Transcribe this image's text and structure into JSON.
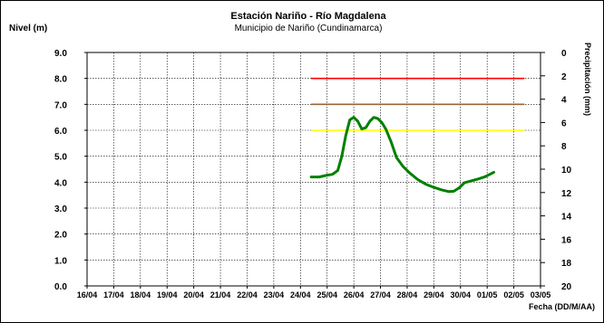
{
  "chart_data": {
    "type": "line",
    "title": "Estación Nariño  - Río Magdalena",
    "subtitle": "Municipio de Nariño (Cundinamarca)",
    "ylabel": "Nivel (m)",
    "y2label": "Precipitación (mm)",
    "xlabel": "Fecha (DD/M/AA)",
    "ylim": [
      0,
      9
    ],
    "y2lim": [
      20,
      0
    ],
    "y_ticks": [
      "0.0",
      "1.0",
      "2.0",
      "3.0",
      "4.0",
      "5.0",
      "6.0",
      "7.0",
      "8.0",
      "9.0"
    ],
    "y2_ticks": [
      "0",
      "2",
      "4",
      "6",
      "8",
      "10",
      "12",
      "14",
      "16",
      "18",
      "20"
    ],
    "x_ticks": [
      "16/04",
      "17/04",
      "18/04",
      "19/04",
      "20/04",
      "21/04",
      "22/04",
      "23/04",
      "24/04",
      "25/04",
      "26/04",
      "27/04",
      "28/04",
      "29/04",
      "30/04",
      "01/05",
      "02/05",
      "03/05"
    ],
    "xlim": [
      0,
      17
    ],
    "grid": true,
    "thresholds": [
      {
        "value": 8.0,
        "color": "#ff0000",
        "x_start": 8.4,
        "x_end": 16.4
      },
      {
        "value": 7.0,
        "color": "#996633",
        "x_start": 8.4,
        "x_end": 16.4
      },
      {
        "value": 6.0,
        "color": "#ffff00",
        "x_start": 8.4,
        "x_end": 16.4
      }
    ],
    "series": [
      {
        "color": "#008000",
        "points": [
          [
            8.4,
            4.2
          ],
          [
            8.7,
            4.2
          ],
          [
            9.0,
            4.27
          ],
          [
            9.2,
            4.3
          ],
          [
            9.4,
            4.45
          ],
          [
            9.55,
            5.0
          ],
          [
            9.7,
            5.8
          ],
          [
            9.85,
            6.4
          ],
          [
            10.0,
            6.5
          ],
          [
            10.15,
            6.35
          ],
          [
            10.3,
            6.05
          ],
          [
            10.45,
            6.1
          ],
          [
            10.6,
            6.35
          ],
          [
            10.75,
            6.5
          ],
          [
            10.9,
            6.45
          ],
          [
            11.05,
            6.3
          ],
          [
            11.2,
            6.05
          ],
          [
            11.4,
            5.55
          ],
          [
            11.6,
            4.95
          ],
          [
            11.85,
            4.6
          ],
          [
            12.1,
            4.35
          ],
          [
            12.4,
            4.1
          ],
          [
            12.7,
            3.92
          ],
          [
            13.0,
            3.8
          ],
          [
            13.3,
            3.7
          ],
          [
            13.55,
            3.64
          ],
          [
            13.75,
            3.65
          ],
          [
            13.95,
            3.78
          ],
          [
            14.15,
            3.98
          ],
          [
            14.4,
            4.05
          ],
          [
            14.65,
            4.12
          ],
          [
            14.9,
            4.2
          ],
          [
            15.1,
            4.3
          ],
          [
            15.25,
            4.38
          ]
        ]
      }
    ],
    "colors": {
      "grid": "#000000",
      "axis": "#000000"
    }
  }
}
